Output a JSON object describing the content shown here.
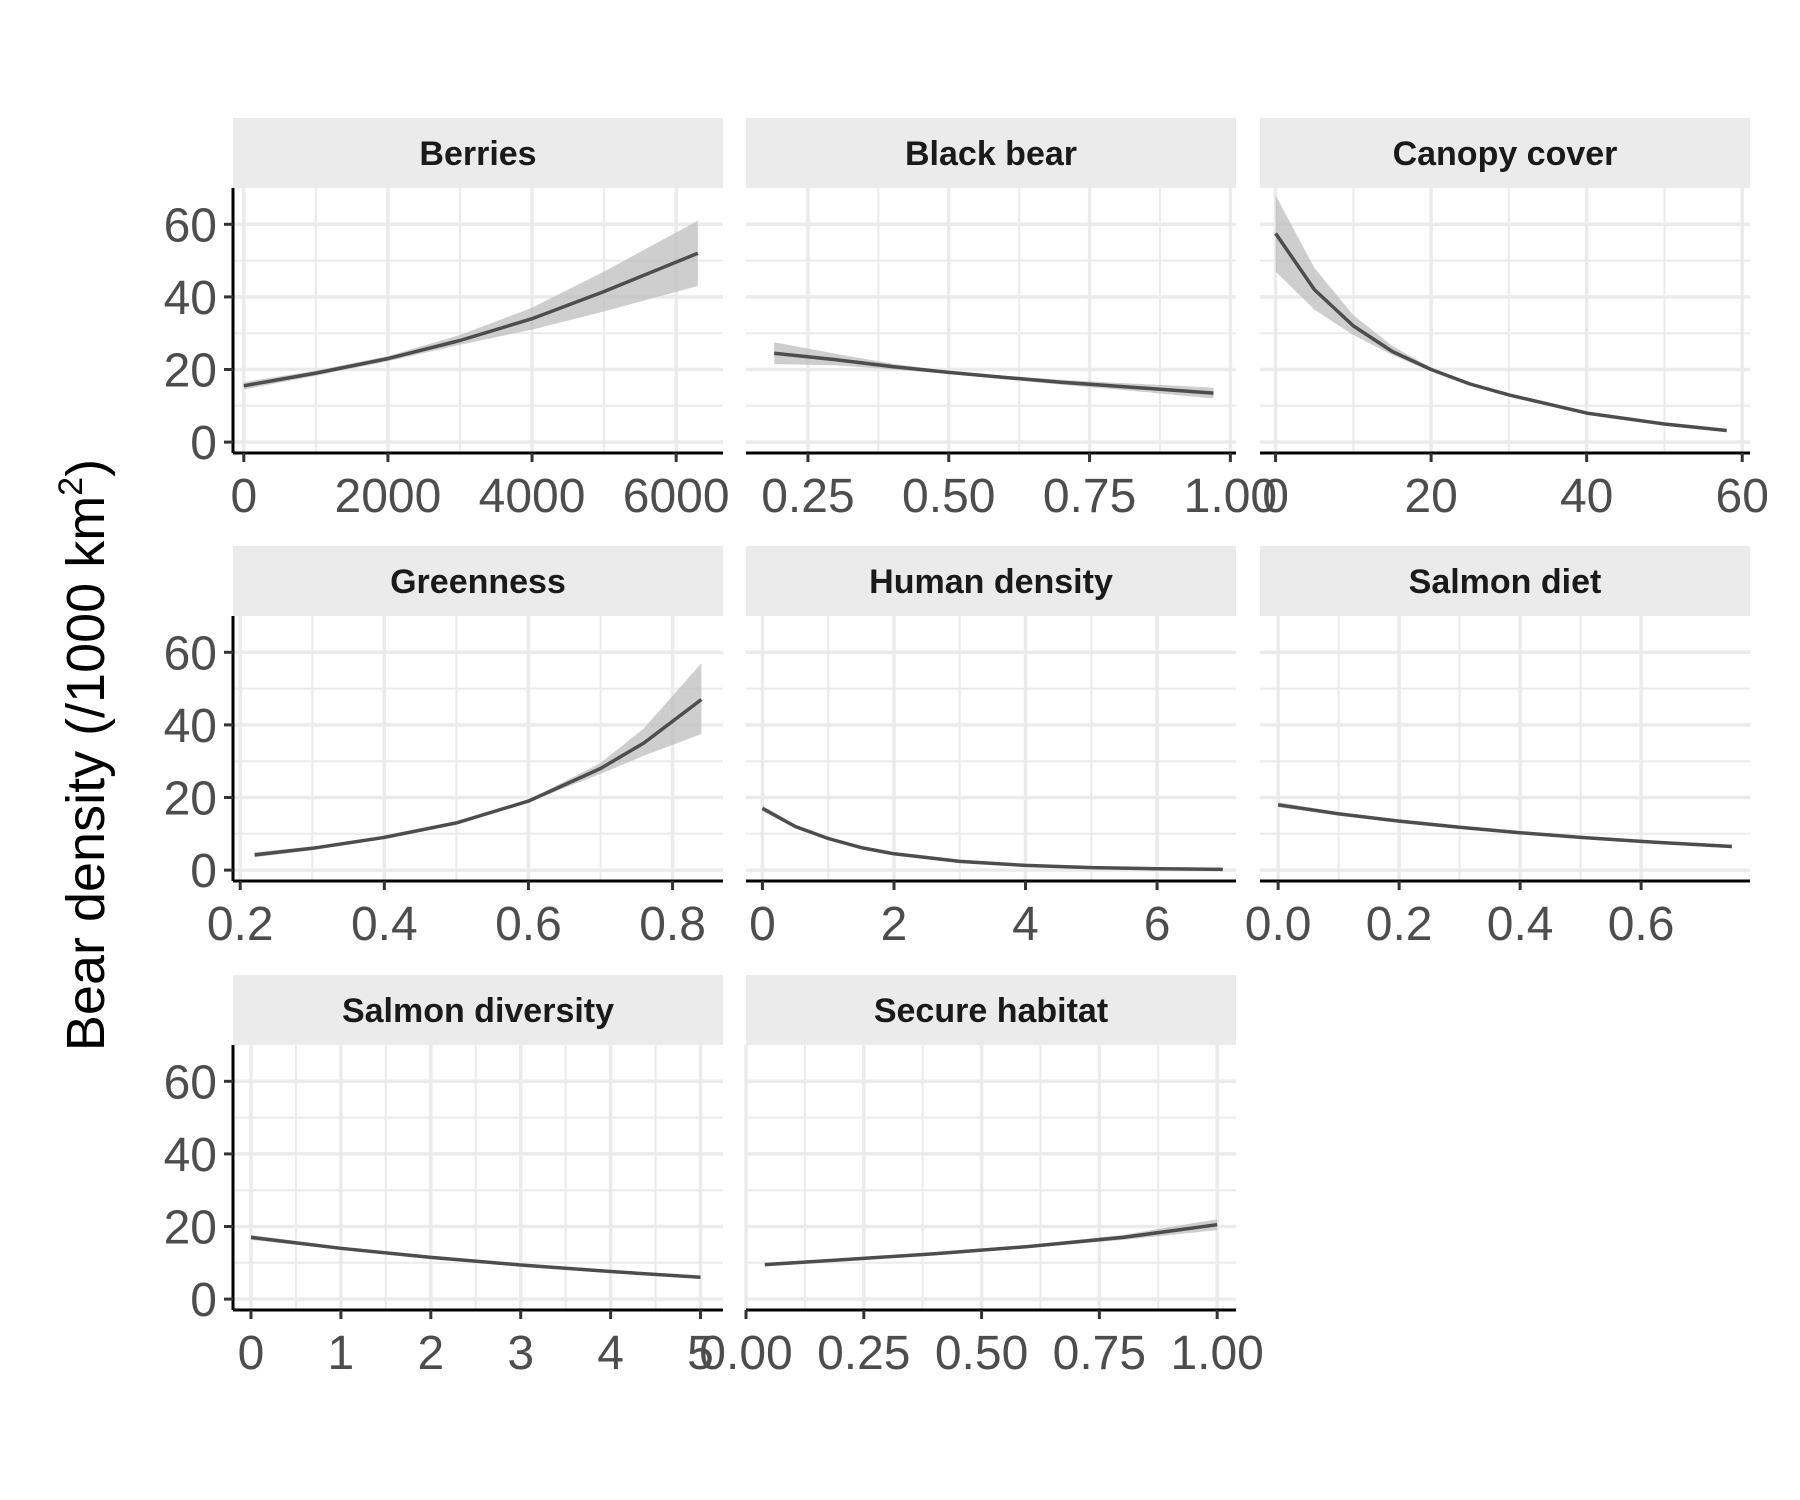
{
  "figure": {
    "ylabel_main": "Bear density (/1000 km",
    "ylabel_sup": "2",
    "ylabel_close": ")"
  },
  "colors": {
    "line": "#4d4d4d",
    "ribbon": "#bdbdbd",
    "strip": "#ebebeb",
    "grid": "#ebebeb",
    "axis": "#000000",
    "tick_text": "#4d4d4d",
    "strip_text": "#1a1a1a"
  },
  "chart_data": [
    {
      "type": "line",
      "title": "Berries",
      "xlim": [
        -150,
        6650
      ],
      "ylim": [
        -3,
        70
      ],
      "xticks": [
        0,
        2000,
        4000,
        6000
      ],
      "xtick_labels": [
        "0",
        "2000",
        "4000",
        "6000"
      ],
      "yticks": [
        0,
        20,
        40,
        60
      ],
      "ytick_labels": [
        "0",
        "20",
        "40",
        "60"
      ],
      "x": [
        0,
        1000,
        2000,
        3000,
        4000,
        5000,
        6300
      ],
      "y": [
        15.5,
        19,
        23,
        28,
        34,
        41.5,
        52
      ],
      "lower": [
        14.5,
        18.3,
        22.3,
        26.8,
        31,
        36,
        43
      ],
      "upper": [
        16.5,
        19.7,
        23.7,
        29.5,
        37,
        47,
        61
      ]
    },
    {
      "type": "line",
      "title": "Black bear",
      "xlim": [
        0.14,
        1.01
      ],
      "ylim": [
        -3,
        70
      ],
      "xticks": [
        0.25,
        0.5,
        0.75,
        1.0
      ],
      "xtick_labels": [
        "0.25",
        "0.50",
        "0.75",
        "1.00"
      ],
      "yticks": [
        0,
        20,
        40,
        60
      ],
      "ytick_labels": [
        "0",
        "20",
        "40",
        "60"
      ],
      "x": [
        0.19,
        0.3,
        0.4,
        0.5,
        0.6,
        0.7,
        0.8,
        0.9,
        0.97
      ],
      "y": [
        24.5,
        22.7,
        20.8,
        19.2,
        17.8,
        16.5,
        15.4,
        14.3,
        13.5
      ],
      "lower": [
        21.5,
        21.2,
        20,
        18.8,
        17.3,
        15.8,
        14.5,
        13,
        12
      ],
      "upper": [
        27.5,
        24.3,
        21.6,
        19.6,
        18.3,
        17.2,
        16.3,
        15.6,
        15
      ]
    },
    {
      "type": "line",
      "title": "Canopy cover",
      "xlim": [
        -2,
        61
      ],
      "ylim": [
        -3,
        70
      ],
      "xticks": [
        0,
        20,
        40,
        60
      ],
      "xtick_labels": [
        "0",
        "20",
        "40",
        "60"
      ],
      "yticks": [
        0,
        20,
        40,
        60
      ],
      "ytick_labels": [
        "0",
        "20",
        "40",
        "60"
      ],
      "x": [
        0,
        5,
        10,
        15,
        20,
        25,
        30,
        40,
        50,
        58
      ],
      "y": [
        57.5,
        42,
        32,
        25,
        20,
        16,
        13,
        8,
        5,
        3.2
      ],
      "lower": [
        47,
        36.5,
        29.5,
        24,
        19.5,
        15.7,
        12.7,
        7.8,
        4.7,
        2.9
      ],
      "upper": [
        68,
        48,
        35,
        26.5,
        20.5,
        16.3,
        13.3,
        8.2,
        5.3,
        3.5
      ]
    },
    {
      "type": "line",
      "title": "Greenness",
      "xlim": [
        0.19,
        0.87
      ],
      "ylim": [
        -3,
        70
      ],
      "xticks": [
        0.2,
        0.4,
        0.6,
        0.8
      ],
      "xtick_labels": [
        "0.2",
        "0.4",
        "0.6",
        "0.8"
      ],
      "yticks": [
        0,
        20,
        40,
        60
      ],
      "ytick_labels": [
        "0",
        "20",
        "40",
        "60"
      ],
      "x": [
        0.22,
        0.3,
        0.4,
        0.5,
        0.6,
        0.7,
        0.76,
        0.84
      ],
      "y": [
        4.2,
        6,
        9,
        13,
        19,
        28,
        35,
        47
      ],
      "lower": [
        3.5,
        5.5,
        8.6,
        12.7,
        18.7,
        26.5,
        31.5,
        37.5
      ],
      "upper": [
        4.9,
        6.5,
        9.4,
        13.3,
        19.3,
        29.5,
        39,
        57
      ]
    },
    {
      "type": "line",
      "title": "Human density",
      "xlim": [
        -0.25,
        7.2
      ],
      "ylim": [
        -3,
        70
      ],
      "xticks": [
        0,
        2,
        4,
        6
      ],
      "xtick_labels": [
        "0",
        "2",
        "4",
        "6"
      ],
      "yticks": [
        0,
        20,
        40,
        60
      ],
      "ytick_labels": [
        "0",
        "20",
        "40",
        "60"
      ],
      "x": [
        0,
        0.5,
        1,
        1.5,
        2,
        3,
        4,
        5,
        6,
        7
      ],
      "y": [
        17,
        12,
        8.7,
        6.2,
        4.5,
        2.4,
        1.3,
        0.7,
        0.4,
        0.2
      ],
      "lower": [
        16.2,
        11.5,
        8.3,
        5.9,
        4.2,
        2.2,
        1.1,
        0.5,
        0.2,
        0.05
      ],
      "upper": [
        17.8,
        12.5,
        9.1,
        6.5,
        4.8,
        2.6,
        1.5,
        0.9,
        0.6,
        0.4
      ]
    },
    {
      "type": "line",
      "title": "Salmon diet",
      "xlim": [
        -0.03,
        0.78
      ],
      "ylim": [
        -3,
        70
      ],
      "xticks": [
        0.0,
        0.2,
        0.4,
        0.6
      ],
      "xtick_labels": [
        "0.0",
        "0.2",
        "0.4",
        "0.6"
      ],
      "yticks": [
        0,
        20,
        40,
        60
      ],
      "ytick_labels": [
        "0",
        "20",
        "40",
        "60"
      ],
      "x": [
        0,
        0.1,
        0.2,
        0.3,
        0.4,
        0.5,
        0.6,
        0.75
      ],
      "y": [
        18,
        15.5,
        13.5,
        11.8,
        10.3,
        9,
        7.9,
        6.5
      ],
      "lower": [
        17.3,
        15,
        13,
        11.4,
        9.9,
        8.6,
        7.5,
        6
      ],
      "upper": [
        18.7,
        16,
        14,
        12.2,
        10.7,
        9.4,
        8.3,
        7
      ]
    },
    {
      "type": "line",
      "title": "Salmon diversity",
      "xlim": [
        -0.2,
        5.25
      ],
      "ylim": [
        -3,
        70
      ],
      "xticks": [
        0,
        1,
        2,
        3,
        4,
        5
      ],
      "xtick_labels": [
        "0",
        "1",
        "2",
        "3",
        "4",
        "5"
      ],
      "yticks": [
        0,
        20,
        40,
        60
      ],
      "ytick_labels": [
        "0",
        "20",
        "40",
        "60"
      ],
      "x": [
        0,
        1,
        2,
        3,
        4,
        5
      ],
      "y": [
        17,
        14,
        11.5,
        9.4,
        7.6,
        6
      ],
      "lower": [
        16.3,
        13.6,
        11.1,
        9,
        7.2,
        5.6
      ],
      "upper": [
        17.7,
        14.4,
        11.9,
        9.8,
        8,
        6.4
      ]
    },
    {
      "type": "line",
      "title": "Secure habitat",
      "xlim": [
        0.0,
        1.04
      ],
      "ylim": [
        -3,
        70
      ],
      "xticks": [
        0.0,
        0.25,
        0.5,
        0.75,
        1.0
      ],
      "xtick_labels": [
        "0.00",
        "0.25",
        "0.50",
        "0.75",
        "1.00"
      ],
      "yticks": [
        0,
        20,
        40,
        60
      ],
      "ytick_labels": [
        "0",
        "20",
        "40",
        "60"
      ],
      "x": [
        0.04,
        0.2,
        0.4,
        0.6,
        0.8,
        1.0
      ],
      "y": [
        9.5,
        10.8,
        12.5,
        14.5,
        17,
        20.5
      ],
      "lower": [
        9,
        10.4,
        12.1,
        14.1,
        16.3,
        19
      ],
      "upper": [
        10,
        11.2,
        12.9,
        14.9,
        17.7,
        22
      ]
    }
  ]
}
